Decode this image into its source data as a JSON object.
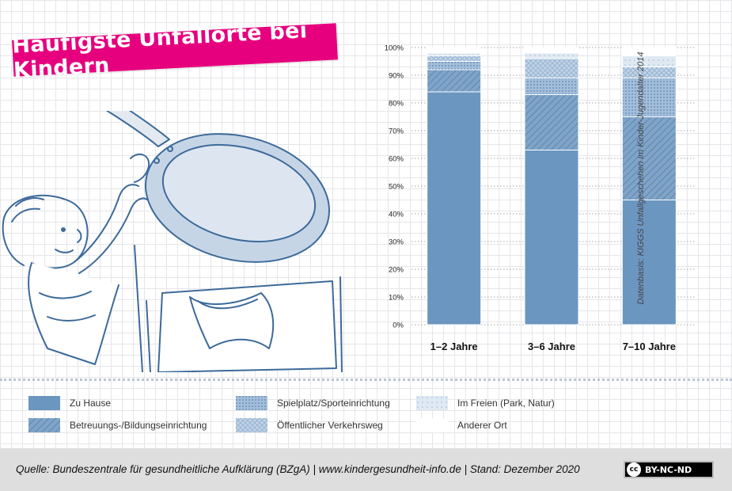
{
  "title": "Häufigste Unfallorte bei Kindern",
  "source_vertical": "Datenbasis: KIGGS Unfallgeschehen im Kinder-Jugendalter 2014",
  "footer": {
    "source": "Quelle: Bundeszentrale für gesundheitliche Aufklärung (BZgA) | www.kindergesundheit-info.de | Stand: Dezember 2020",
    "license": "BY-NC-ND",
    "license_icon": "cc"
  },
  "illustration": {
    "icon": "child-reaching-for-pan-on-stove-illustration"
  },
  "colors": {
    "zu_hause": "#6b96c0",
    "betreuung": "#7fa4c8",
    "spielplatz": "#a3bedb",
    "verkehrsweg": "#c0d3e6",
    "im_freien": "#dfe9f3",
    "anderer_ort": "#ffffff",
    "title_banner": "#e6007e"
  },
  "chart_data": {
    "type": "bar",
    "stacked": true,
    "categories": [
      "1–2  Jahre",
      "3–6  Jahre",
      "7–10 Jahre"
    ],
    "series": [
      {
        "name": "Zu Hause",
        "values": [
          84,
          63,
          45
        ]
      },
      {
        "name": "Betreuungs-/Bildungseinrichtung",
        "values": [
          8,
          20,
          30
        ]
      },
      {
        "name": "Spielplatz/Sporteinrichtung",
        "values": [
          3,
          6,
          14
        ]
      },
      {
        "name": "Öffentlicher Verkehrsweg",
        "values": [
          2,
          7,
          4
        ]
      },
      {
        "name": "Im Freien (Park, Natur)",
        "values": [
          1,
          2,
          4
        ]
      },
      {
        "name": "Anderer Ort",
        "values": [
          2,
          2,
          3
        ]
      }
    ],
    "ylim": [
      0,
      100
    ],
    "yticks": [
      "0%",
      "10%",
      "20%",
      "30%",
      "40%",
      "50%",
      "60%",
      "70%",
      "80%",
      "90%",
      "100%"
    ],
    "grid": true,
    "legend_placement": "bottom"
  }
}
